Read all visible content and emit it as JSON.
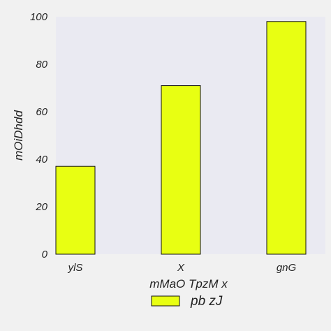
{
  "chart_data": {
    "type": "bar",
    "categories": [
      "ylS",
      "X",
      "gnG"
    ],
    "series": [
      {
        "name": "pb zJ",
        "values": [
          37,
          71,
          98
        ]
      }
    ],
    "title": "",
    "xlabel": "mMaO TpzM   x",
    "ylabel": "mOiDhdd",
    "ylim": [
      0,
      100
    ],
    "yticks": [
      0,
      20,
      40,
      60,
      80,
      100
    ],
    "grid": false,
    "legend_position": "bottom-center",
    "colors": {
      "bar_fill": "#e8ff12",
      "bar_stroke": "#111111",
      "plot_background": "#eaeaf2",
      "page_background": "#f1f1f1"
    }
  }
}
